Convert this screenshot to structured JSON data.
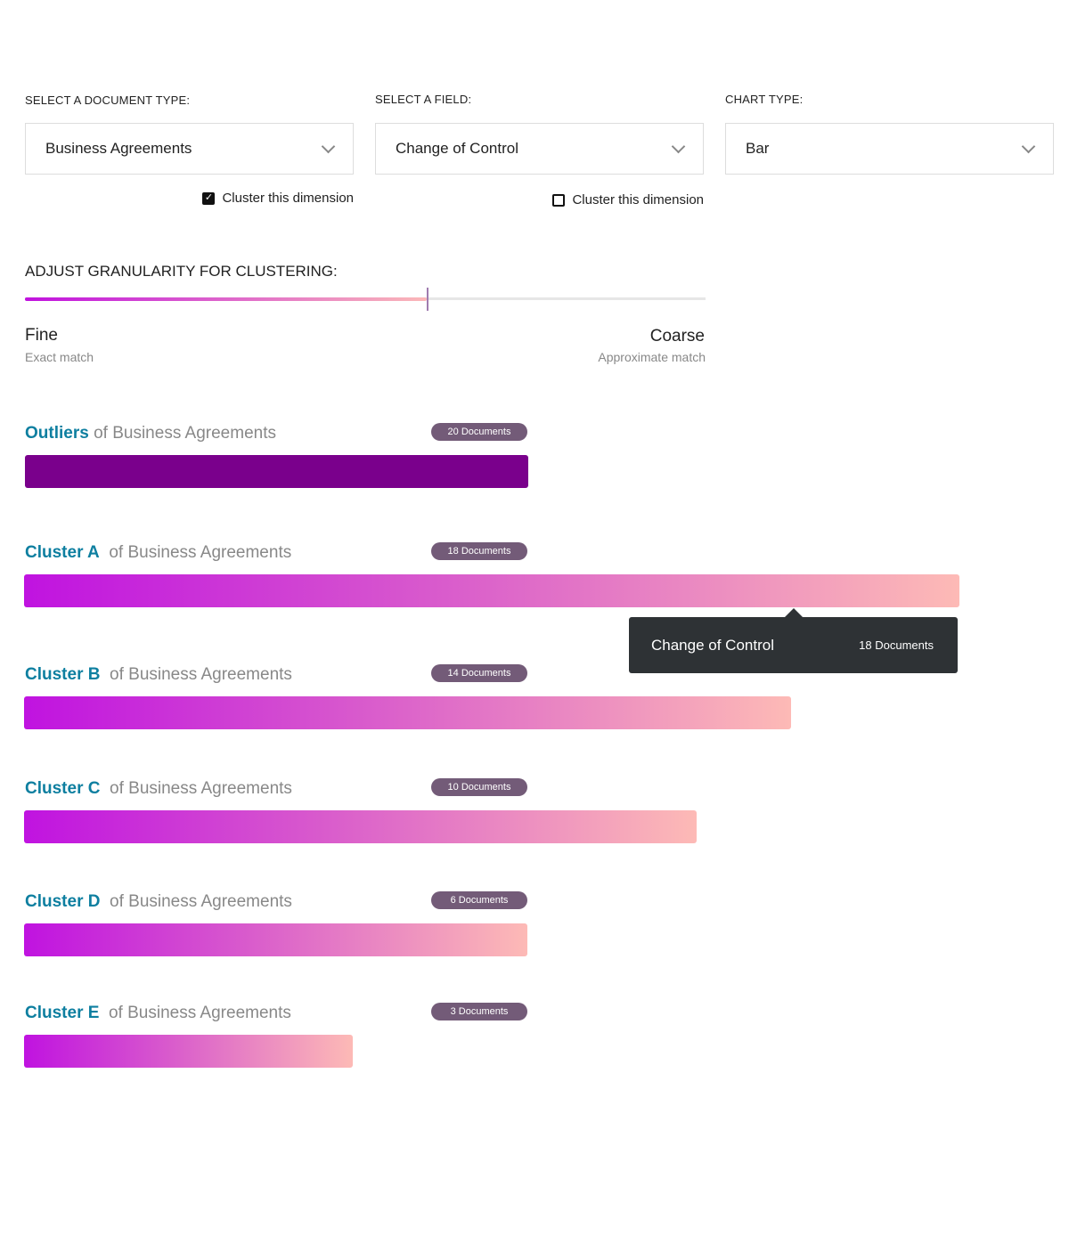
{
  "filters": {
    "document_type": {
      "label": "SELECT A DOCUMENT TYPE:",
      "value": "Business Agreements",
      "cluster_label": "Cluster this dimension",
      "cluster_checked": true
    },
    "field": {
      "label": "SELECT A FIELD:",
      "value": "Change of Control",
      "cluster_label": "Cluster this dimension",
      "cluster_checked": false
    },
    "chart_type": {
      "label": "CHART TYPE:",
      "value": "Bar"
    }
  },
  "granularity": {
    "title": "ADJUST GRANULARITY FOR CLUSTERING:",
    "value_percent": 59,
    "left_label": "Fine",
    "left_sub": "Exact match",
    "right_label": "Coarse",
    "right_sub": "Approximate match"
  },
  "chart_data": {
    "type": "bar",
    "suffix": "of Business Agreements",
    "categories": [
      "Outliers",
      "Cluster A",
      "Cluster B",
      "Cluster C",
      "Cluster D",
      "Cluster E"
    ],
    "values": [
      20,
      18,
      14,
      10,
      6,
      3
    ],
    "badges": [
      "20 Documents",
      "18 Documents",
      "14 Documents",
      "10 Documents",
      "6 Documents",
      "3 Documents"
    ],
    "colors": {
      "outliers": "#7a008c",
      "gradient_start": "#c013e0",
      "gradient_end": "#fdbab6",
      "title": "#0e7fa0",
      "badge": "#735b78"
    }
  },
  "tooltip": {
    "field": "Change of Control",
    "count": "18 Documents"
  }
}
